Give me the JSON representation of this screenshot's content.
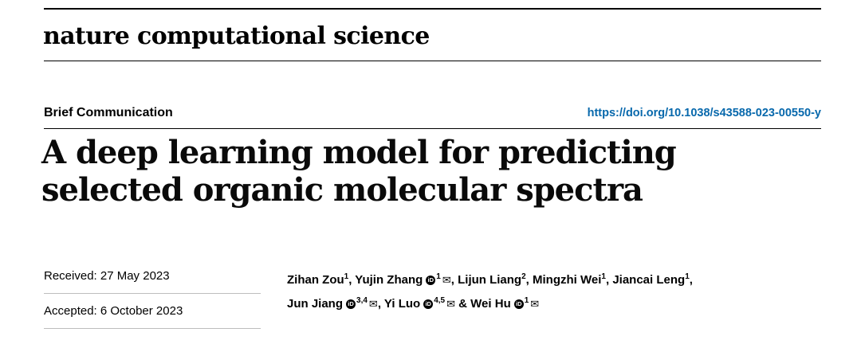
{
  "page": {
    "background": "#ffffff",
    "accent": "#0768ac",
    "rule_color": "#000000",
    "date_rule_color": "#bdbdbd"
  },
  "masthead": {
    "journal_name": "nature computational science"
  },
  "header": {
    "article_type": "Brief Communication",
    "doi": "https://doi.org/10.1038/s43588-023-00550-y"
  },
  "title": {
    "line1": "A deep learning model for predicting",
    "line2": "selected organic molecular spectra"
  },
  "dates": {
    "received": "Received: 27 May 2023",
    "accepted": "Accepted: 6 October 2023"
  },
  "authors": {
    "icons": {
      "orcid": "iD",
      "mail": "✉"
    },
    "list": [
      {
        "name": "Zihan Zou",
        "sup": "1",
        "orcid": false,
        "mail": false,
        "sep": ", "
      },
      {
        "name": "Yujin Zhang",
        "sup": "1",
        "orcid": true,
        "mail": true,
        "sep": ", "
      },
      {
        "name": "Lijun Liang",
        "sup": "2",
        "orcid": false,
        "mail": false,
        "sep": ", "
      },
      {
        "name": "Mingzhi Wei",
        "sup": "1",
        "orcid": false,
        "mail": false,
        "sep": ", "
      },
      {
        "name": "Jiancai Leng",
        "sup": "1",
        "orcid": false,
        "mail": false,
        "sep": ", ",
        "br": true
      },
      {
        "name": "Jun Jiang",
        "sup": "3,4",
        "orcid": true,
        "mail": true,
        "sep": ", "
      },
      {
        "name": "Yi Luo",
        "sup": "4,5",
        "orcid": true,
        "mail": true,
        "sep": " & "
      },
      {
        "name": "Wei Hu",
        "sup": "1",
        "orcid": true,
        "mail": true,
        "sep": ""
      }
    ]
  }
}
